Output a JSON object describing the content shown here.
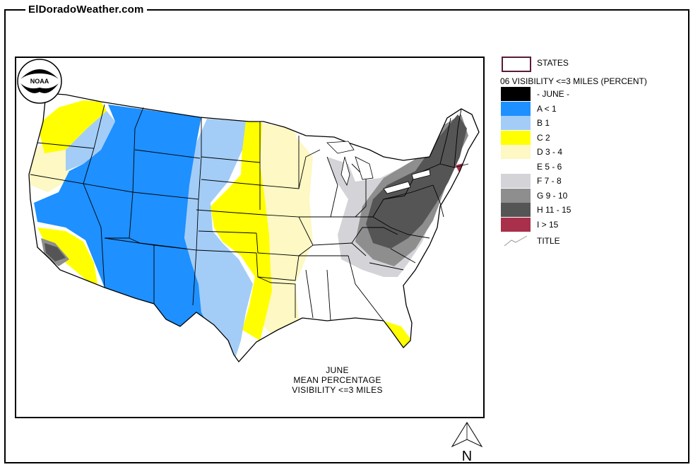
{
  "site_title": "ElDoradoWeather.com",
  "legend": {
    "states_label": "STATES",
    "heading": "06 VISIBILITY <=3 MILES (PERCENT)",
    "items": [
      {
        "label": "- JUNE -",
        "color": "#000000"
      },
      {
        "label": "A < 1",
        "color": "#1e90ff"
      },
      {
        "label": "B 1",
        "color": "#a3cdf7"
      },
      {
        "label": "C 2",
        "color": "#ffff00"
      },
      {
        "label": "D 3 - 4",
        "color": "#fdf8c4"
      },
      {
        "label": "E 5 - 6",
        "color": "#ffffff"
      },
      {
        "label": "F 7 - 8",
        "color": "#d3d3d8"
      },
      {
        "label": "G 9 - 10",
        "color": "#8e8e8e"
      },
      {
        "label": "H 11 - 15",
        "color": "#555555"
      },
      {
        "label": "I > 15",
        "color": "#a8304a"
      }
    ],
    "title_label": "TITLE"
  },
  "map_caption": {
    "line1": "JUNE",
    "line2": "MEAN PERCENTAGE",
    "line3": "VISIBILITY <=3 MILES"
  },
  "noaa_text": "NOAA",
  "north_label": "N"
}
